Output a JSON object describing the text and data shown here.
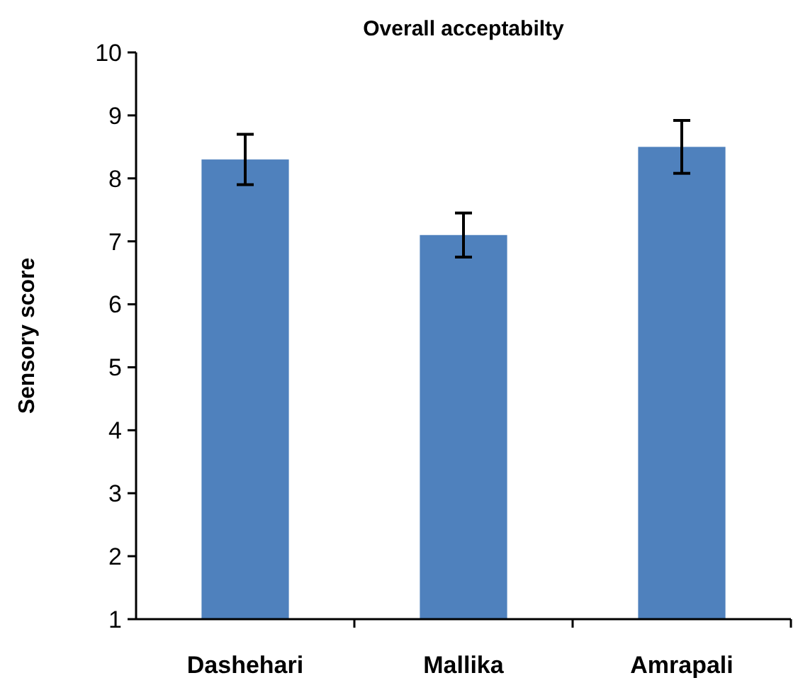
{
  "chart_data": {
    "type": "bar",
    "title": "Overall acceptabilty",
    "ylabel": "Sensory score",
    "categories": [
      "Dashehari",
      "Mallika",
      "Amrapali"
    ],
    "values": [
      8.3,
      7.1,
      8.5
    ],
    "errors": [
      0.4,
      0.35,
      0.42
    ],
    "color": "#4f81bd",
    "ylim": [
      1,
      10
    ],
    "yticks": [
      1,
      2,
      3,
      4,
      5,
      6,
      7,
      8,
      9,
      10
    ],
    "grid": false
  }
}
